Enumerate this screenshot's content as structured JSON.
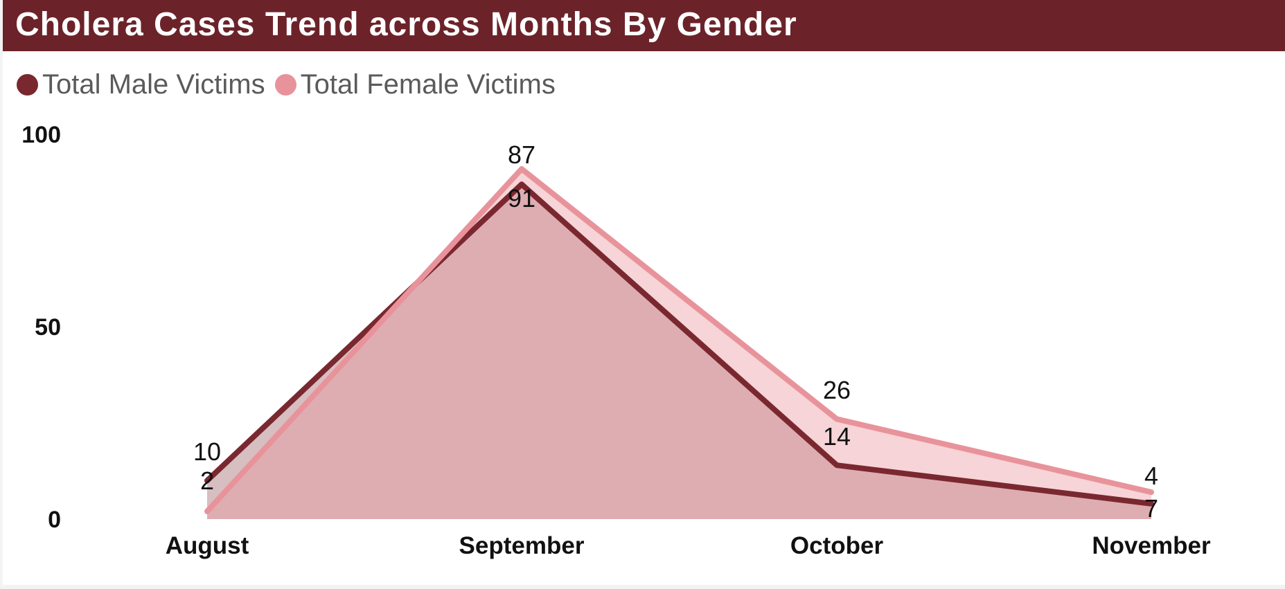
{
  "title": "Cholera Cases Trend across Months By Gender",
  "colors": {
    "header": "#6b2329",
    "male": "#7a2830",
    "female": "#e8939b"
  },
  "legend": [
    {
      "label": "Total Male Victims",
      "color": "#7a2830"
    },
    {
      "label": "Total Female Victims",
      "color": "#e8939b"
    }
  ],
  "chart_data": {
    "type": "area",
    "title": "Cholera Cases Trend across Months By Gender",
    "categories": [
      "August",
      "September",
      "October",
      "November"
    ],
    "series": [
      {
        "name": "Total Male Victims",
        "values": [
          10,
          87,
          14,
          4
        ]
      },
      {
        "name": "Total Female Victims",
        "values": [
          2,
          91,
          26,
          7
        ]
      }
    ],
    "data_labels": [
      [
        "10",
        "87",
        "14",
        "4"
      ],
      [
        "2",
        "91",
        "26",
        "7"
      ]
    ],
    "ylim": [
      0,
      100
    ],
    "yticks": [
      0,
      50,
      100
    ],
    "xlabel": "",
    "ylabel": "",
    "grid": false,
    "legend_position": "top-left"
  }
}
